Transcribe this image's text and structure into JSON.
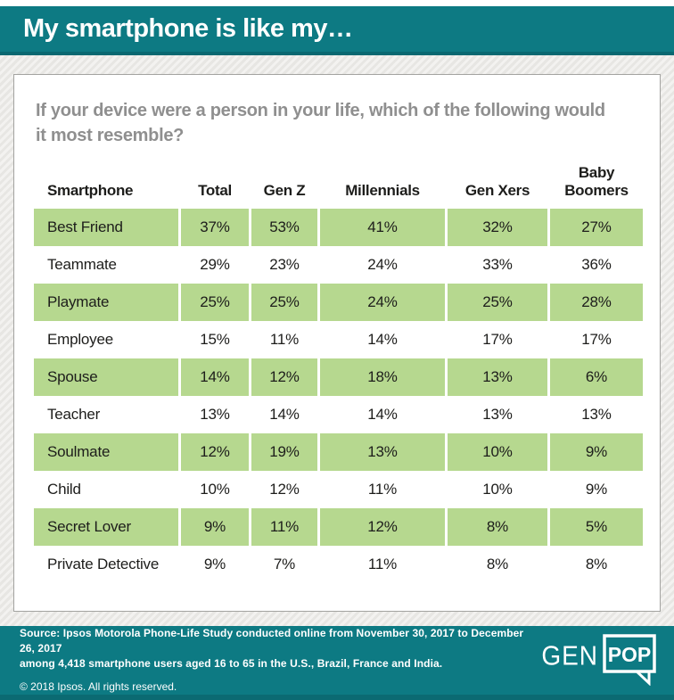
{
  "header": {
    "title": "My smartphone is like my…"
  },
  "question": "If your device were a person in your life, which of the following would it most resemble?",
  "chart_data": {
    "type": "table",
    "title": "My smartphone is like my…",
    "subtitle": "If your device were a person in your life, which of the following would it most resemble?",
    "columns": [
      "Smartphone",
      "Total",
      "Gen Z",
      "Millennials",
      "Gen Xers",
      "Baby Boomers"
    ],
    "rows": [
      {
        "label": "Best Friend",
        "values": [
          "37%",
          "53%",
          "41%",
          "32%",
          "27%"
        ],
        "highlight": true
      },
      {
        "label": "Teammate",
        "values": [
          "29%",
          "23%",
          "24%",
          "33%",
          "36%"
        ],
        "highlight": false
      },
      {
        "label": "Playmate",
        "values": [
          "25%",
          "25%",
          "24%",
          "25%",
          "28%"
        ],
        "highlight": true
      },
      {
        "label": "Employee",
        "values": [
          "15%",
          "11%",
          "14%",
          "17%",
          "17%"
        ],
        "highlight": false
      },
      {
        "label": "Spouse",
        "values": [
          "14%",
          "12%",
          "18%",
          "13%",
          "6%"
        ],
        "highlight": true
      },
      {
        "label": "Teacher",
        "values": [
          "13%",
          "14%",
          "14%",
          "13%",
          "13%"
        ],
        "highlight": false
      },
      {
        "label": "Soulmate",
        "values": [
          "12%",
          "19%",
          "13%",
          "10%",
          "9%"
        ],
        "highlight": true
      },
      {
        "label": "Child",
        "values": [
          "10%",
          "12%",
          "11%",
          "10%",
          "9%"
        ],
        "highlight": false
      },
      {
        "label": "Secret Lover",
        "values": [
          "9%",
          "11%",
          "12%",
          "8%",
          "5%"
        ],
        "highlight": true
      },
      {
        "label": "Private Detective",
        "values": [
          "9%",
          "7%",
          "11%",
          "8%",
          "8%"
        ],
        "highlight": false
      }
    ]
  },
  "footer": {
    "source_line1": "Source: Ipsos Motorola Phone-Life Study conducted online from November 30, 2017 to December 26, 2017",
    "source_line2": "among 4,418 smartphone users aged 16 to 65 in the U.S., Brazil, France and India.",
    "copyright": "© 2018 Ipsos. All rights reserved.",
    "logo": {
      "gen": "GEN",
      "pop": "POP"
    }
  },
  "colors": {
    "teal": "#0d7a83",
    "teal_dark": "#0a6871",
    "highlight_green": "#b6d88f",
    "question_gray": "#8f8f8f",
    "text_dark": "#1d1d1b",
    "card_background": "#ffffff"
  }
}
